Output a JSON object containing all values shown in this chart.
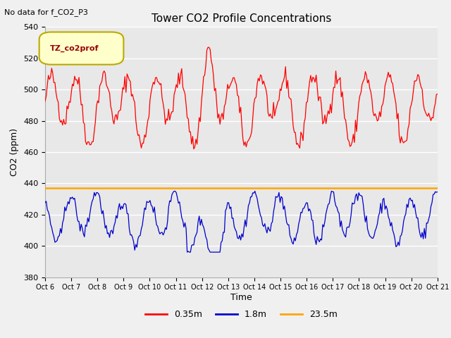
{
  "title": "Tower CO2 Profile Concentrations",
  "top_left_text": "No data for f_CO2_P3",
  "legend_box_text": "TZ_co2prof",
  "xlabel": "Time",
  "ylabel": "CO2 (ppm)",
  "ylim": [
    380,
    540
  ],
  "yticks": [
    380,
    400,
    420,
    440,
    460,
    480,
    500,
    520,
    540
  ],
  "xtick_labels": [
    "Oct 6",
    "Oct 7",
    "Oct 8",
    "Oct 9",
    "Oct 10",
    "Oct 11",
    "Oct 12",
    "Oct 13",
    "Oct 14",
    "Oct 15",
    "Oct 16",
    "Oct 17",
    "Oct 18",
    "Oct 19",
    "Oct 20",
    "Oct 21"
  ],
  "horizontal_line_value": 437,
  "horizontal_line_color": "#FFA500",
  "red_color": "#FF0000",
  "blue_color": "#0000CC",
  "legend_entries": [
    "0.35m",
    "1.8m",
    "23.5m"
  ],
  "legend_colors": [
    "#FF0000",
    "#0000CC",
    "#FFA500"
  ],
  "fig_bg_color": "#F0F0F0",
  "plot_bg_color": "#E8E8E8",
  "grid_color": "#FFFFFF",
  "legend_box_border": "#BBAA00",
  "legend_box_bg": "#FFFFCC",
  "legend_text_color": "#990000"
}
